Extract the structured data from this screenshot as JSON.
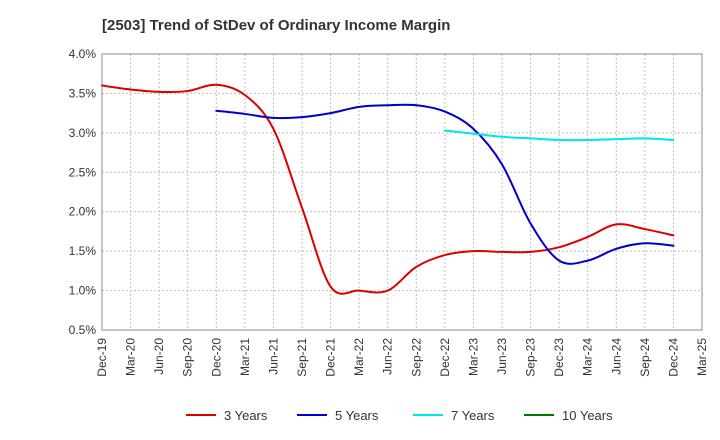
{
  "chart_data": {
    "type": "line",
    "title": "[2503]  Trend of StDev of Ordinary Income Margin",
    "xlabel": "",
    "ylabel": "",
    "ylim": [
      0.5,
      4.0
    ],
    "y_ticks": [
      0.5,
      1.0,
      1.5,
      2.0,
      2.5,
      3.0,
      3.5,
      4.0
    ],
    "y_tick_labels": [
      "0.5%",
      "1.0%",
      "1.5%",
      "2.0%",
      "2.5%",
      "3.0%",
      "3.5%",
      "4.0%"
    ],
    "x_tick_labels": [
      "Dec-19",
      "Mar-20",
      "Jun-20",
      "Sep-20",
      "Dec-20",
      "Mar-21",
      "Jun-21",
      "Sep-21",
      "Dec-21",
      "Mar-22",
      "Jun-22",
      "Sep-22",
      "Dec-22",
      "Mar-23",
      "Jun-23",
      "Sep-23",
      "Dec-23",
      "Mar-24",
      "Jun-24",
      "Sep-24",
      "Dec-24",
      "Mar-25"
    ],
    "grid": true,
    "legend_position": "bottom",
    "series": [
      {
        "name": "3 Years",
        "color": "#dd0000",
        "values": [
          3.6,
          3.55,
          3.52,
          3.53,
          3.61,
          3.48,
          3.05,
          2.05,
          1.05,
          1.0,
          1.0,
          1.3,
          1.45,
          1.5,
          1.49,
          1.49,
          1.55,
          1.68,
          1.84,
          1.78,
          1.7
        ]
      },
      {
        "name": "5 Years",
        "color": "#0000cc",
        "start_index": 4,
        "values": [
          3.28,
          3.24,
          3.19,
          3.2,
          3.25,
          3.33,
          3.35,
          3.35,
          3.27,
          3.05,
          2.6,
          1.85,
          1.38,
          1.38,
          1.53,
          1.6,
          1.57
        ]
      },
      {
        "name": "7 Years",
        "color": "#00e5e5",
        "start_index": 12,
        "values": [
          3.03,
          2.99,
          2.95,
          2.93,
          2.91,
          2.91,
          2.92,
          2.93,
          2.91
        ]
      },
      {
        "name": "10 Years",
        "color": "#007700",
        "start_index": 20,
        "values": []
      }
    ]
  }
}
